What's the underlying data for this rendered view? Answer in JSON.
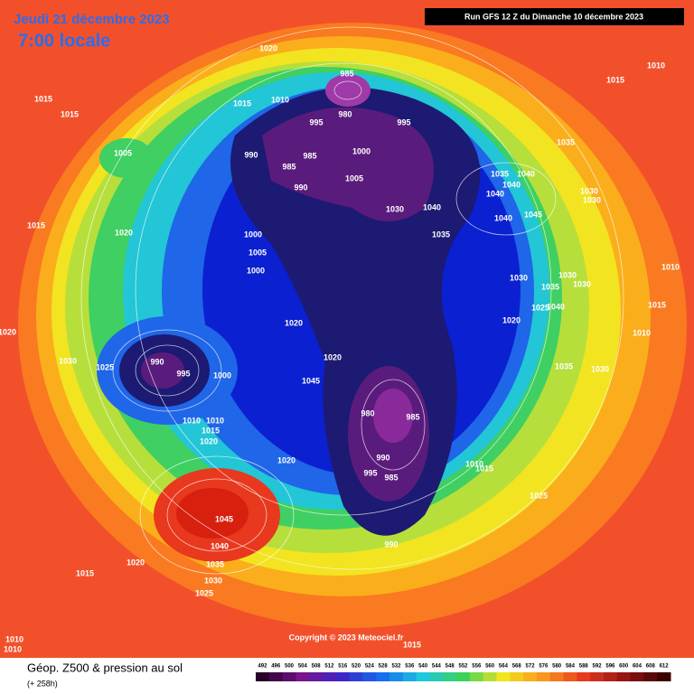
{
  "header": {
    "date": "Jeudi 21 décembre 2023",
    "time": "7:00 locale",
    "run": "Run GFS 12 Z du Dimanche 10 décembre 2023"
  },
  "pressure_labels": [
    1020,
    985,
    980,
    1015,
    1010,
    995,
    995,
    1015,
    1015,
    1005,
    990,
    985,
    985,
    990,
    1000,
    1005,
    1030,
    1040,
    1035,
    1035,
    1040,
    1040,
    1040,
    1040,
    1045,
    1035,
    1030,
    1030,
    1015,
    1020,
    1000,
    1005,
    1000,
    1030,
    1035,
    1030,
    1030,
    1025,
    1040,
    1020,
    1020,
    1020,
    990,
    995,
    1000,
    1030,
    1025,
    1045,
    1035,
    1030,
    980,
    985,
    990,
    995,
    985,
    1010,
    1015,
    1010,
    1010,
    1015,
    1020,
    1020,
    1025,
    1045,
    1040,
    1035,
    1030,
    1025,
    1020,
    1015,
    990,
    1015,
    1010,
    1010,
    1010,
    1015,
    1010,
    1015,
    1010,
    1020
  ],
  "copyright": "Copyright © 2023 Meteociel.fr",
  "footer": {
    "title": "Géop. Z500 & pression au sol",
    "lead": "(+ 258h)"
  },
  "scale": [
    492,
    496,
    500,
    504,
    508,
    512,
    516,
    520,
    524,
    528,
    532,
    536,
    540,
    544,
    548,
    552,
    556,
    560,
    564,
    568,
    572,
    576,
    580,
    584,
    588,
    592,
    596,
    600,
    604,
    608,
    612
  ]
}
